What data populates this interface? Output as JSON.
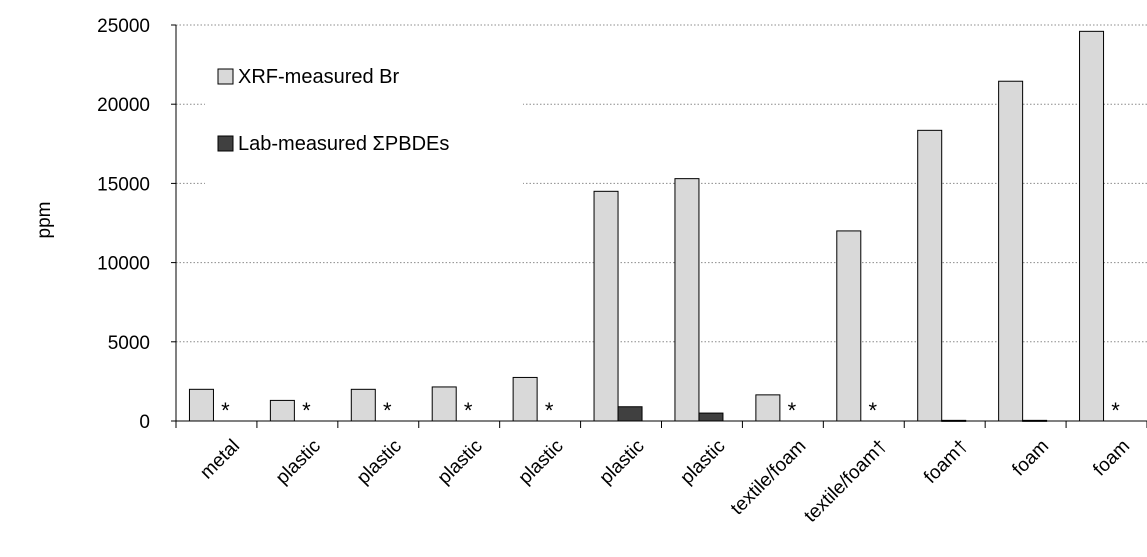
{
  "chart_data": {
    "type": "bar",
    "ylabel": "ppm",
    "ylim": [
      0,
      25000
    ],
    "yticks": [
      "0",
      "5000",
      "10000",
      "15000",
      "20000",
      "25000"
    ],
    "grid": true,
    "legend_position": "top-left",
    "categories": [
      "metal",
      "plastic",
      "plastic",
      "plastic",
      "plastic",
      "plastic",
      "plastic",
      "textile/foam",
      "textile/foam†",
      "foam†",
      "foam",
      "foam"
    ],
    "series": [
      {
        "name": "XRF-measured Br",
        "color": "#d9d9d9",
        "values": [
          2000,
          1300,
          2000,
          2150,
          2750,
          14500,
          15300,
          1650,
          12000,
          18350,
          21450,
          24600
        ]
      },
      {
        "name": "Lab-measured ΣPBDEs",
        "color": "#404040",
        "values": [
          0,
          0,
          0,
          0,
          0,
          900,
          500,
          0,
          0,
          40,
          40,
          0
        ]
      }
    ],
    "annotations": [
      "*",
      "*",
      "*",
      "*",
      "*",
      "",
      "",
      "*",
      "*",
      "",
      "",
      "*"
    ]
  }
}
